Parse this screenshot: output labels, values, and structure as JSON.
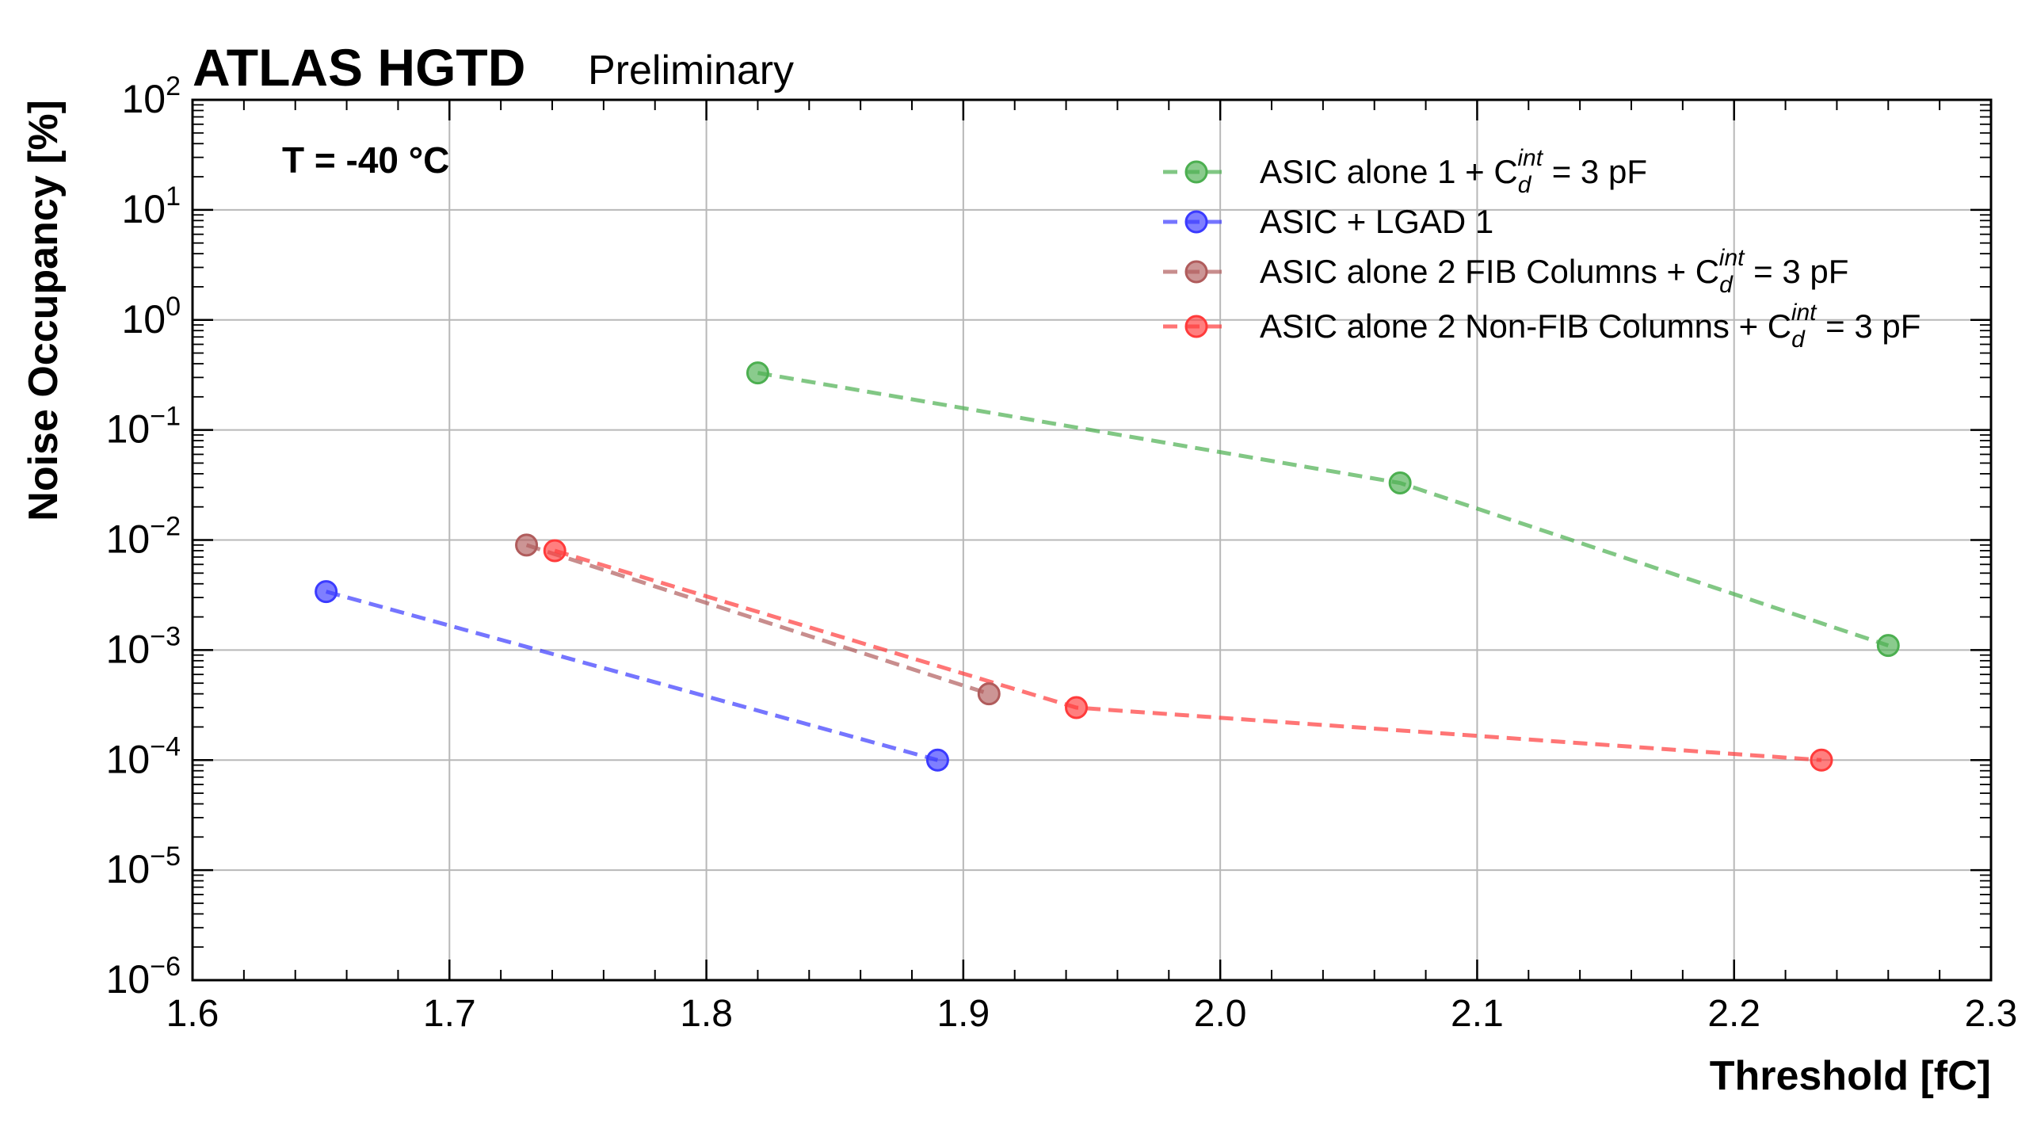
{
  "chart_data": {
    "type": "line",
    "experiment": "ATLAS HGTD",
    "status": "Preliminary",
    "annotation": "T = -40 °C",
    "xlabel": "Threshold [fC]",
    "ylabel": "Noise Occupancy [%]",
    "xscale": "linear",
    "yscale": "log",
    "xlim": [
      1.6,
      2.3
    ],
    "ylim_exp": [
      -6,
      2
    ],
    "xticks": [
      "1.6",
      "1.7",
      "1.8",
      "1.9",
      "2.0",
      "2.1",
      "2.2",
      "2.3"
    ],
    "ytick_base": "10",
    "ytick_exponents": [
      "−6",
      "−5",
      "−4",
      "−3",
      "−2",
      "−1",
      "0",
      "1",
      "2"
    ],
    "grid": true,
    "legend_position": "top-right",
    "series": [
      {
        "name_main": "ASIC alone 1 + C",
        "name_sub": "d",
        "name_sup": "int",
        "name_tail": " = 3 pF",
        "color": "#4caf50",
        "x": [
          1.82,
          2.07,
          2.26
        ],
        "y": [
          0.33,
          0.033,
          0.0011
        ]
      },
      {
        "name_main": "ASIC + LGAD 1",
        "name_sub": "",
        "name_sup": "",
        "name_tail": "",
        "color": "#3b3bff",
        "x": [
          1.652,
          1.89
        ],
        "y": [
          0.0034,
          0.0001
        ]
      },
      {
        "name_main": "ASIC alone 2 FIB Columns + C",
        "name_sub": "d",
        "name_sup": "int",
        "name_tail": " = 3 pF",
        "color": "#b05c5c",
        "x": [
          1.73,
          1.91
        ],
        "y": [
          0.009,
          0.0004
        ]
      },
      {
        "name_main": "ASIC alone 2 Non-FIB Columns + C",
        "name_sub": "d",
        "name_sup": "int",
        "name_tail": " = 3 pF",
        "color": "#ff3b3b",
        "x": [
          1.741,
          1.944,
          2.234
        ],
        "y": [
          0.008,
          0.0003,
          0.0001
        ]
      }
    ]
  }
}
